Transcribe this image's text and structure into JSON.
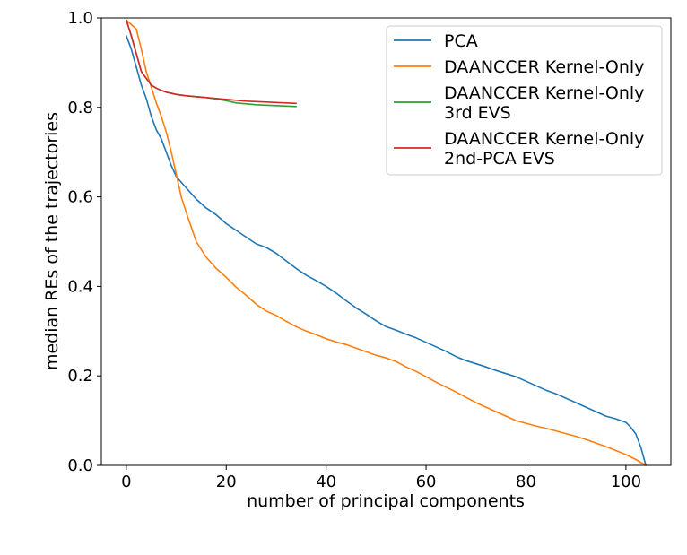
{
  "chart_data": {
    "type": "line",
    "title": "",
    "xlabel": "number of principal components",
    "ylabel": "median REs of the trajectories",
    "xlim": [
      -5,
      109
    ],
    "ylim": [
      0.0,
      1.0
    ],
    "xticks": [
      0,
      20,
      40,
      60,
      80,
      100
    ],
    "yticks": [
      0.0,
      0.2,
      0.4,
      0.6,
      0.8,
      1.0
    ],
    "xtick_labels": [
      "0",
      "20",
      "40",
      "60",
      "80",
      "100"
    ],
    "ytick_labels": [
      "0.0",
      "0.2",
      "0.4",
      "0.6",
      "0.8",
      "1.0"
    ],
    "grid": false,
    "legend_position": "top-right",
    "series": [
      {
        "name": "PCA",
        "color": "#1f77b4",
        "x": [
          0,
          1,
          2,
          3,
          4,
          5,
          6,
          7,
          8,
          9,
          10,
          12,
          14,
          16,
          18,
          20,
          22,
          24,
          26,
          28,
          30,
          32,
          34,
          36,
          38,
          40,
          42,
          44,
          46,
          48,
          50,
          52,
          54,
          56,
          58,
          60,
          62,
          64,
          66,
          68,
          70,
          72,
          74,
          76,
          78,
          80,
          82,
          84,
          86,
          88,
          90,
          92,
          94,
          96,
          98,
          100,
          101,
          102,
          103,
          104
        ],
        "y": [
          0.96,
          0.93,
          0.89,
          0.85,
          0.82,
          0.78,
          0.75,
          0.73,
          0.7,
          0.67,
          0.645,
          0.62,
          0.595,
          0.575,
          0.56,
          0.54,
          0.525,
          0.51,
          0.495,
          0.487,
          0.474,
          0.457,
          0.44,
          0.425,
          0.413,
          0.4,
          0.385,
          0.368,
          0.352,
          0.338,
          0.323,
          0.31,
          0.302,
          0.293,
          0.285,
          0.275,
          0.265,
          0.255,
          0.243,
          0.234,
          0.227,
          0.22,
          0.212,
          0.205,
          0.198,
          0.188,
          0.178,
          0.168,
          0.16,
          0.15,
          0.14,
          0.13,
          0.12,
          0.11,
          0.104,
          0.096,
          0.085,
          0.07,
          0.04,
          0.0
        ]
      },
      {
        "name": "DAANCCER Kernel-Only",
        "color": "#ff7f0e",
        "x": [
          0,
          2,
          3,
          4,
          5,
          6,
          7,
          8,
          9,
          10,
          11,
          12,
          14,
          16,
          18,
          20,
          22,
          24,
          26,
          28,
          30,
          32,
          34,
          36,
          38,
          40,
          42,
          44,
          46,
          48,
          50,
          52,
          54,
          56,
          58,
          60,
          62,
          64,
          66,
          68,
          70,
          72,
          74,
          76,
          78,
          80,
          82,
          84,
          86,
          88,
          90,
          92,
          94,
          96,
          98,
          100,
          102,
          104
        ],
        "y": [
          0.995,
          0.975,
          0.93,
          0.88,
          0.845,
          0.81,
          0.78,
          0.745,
          0.7,
          0.65,
          0.6,
          0.565,
          0.5,
          0.465,
          0.44,
          0.42,
          0.398,
          0.38,
          0.36,
          0.345,
          0.335,
          0.322,
          0.31,
          0.3,
          0.292,
          0.283,
          0.276,
          0.27,
          0.262,
          0.254,
          0.246,
          0.24,
          0.232,
          0.22,
          0.21,
          0.198,
          0.186,
          0.175,
          0.164,
          0.152,
          0.14,
          0.13,
          0.12,
          0.11,
          0.1,
          0.094,
          0.088,
          0.083,
          0.077,
          0.071,
          0.065,
          0.058,
          0.05,
          0.042,
          0.033,
          0.024,
          0.013,
          0.0
        ]
      },
      {
        "name": "DAANCCER Kernel-Only\n3rd EVS",
        "color": "#2ca02c",
        "x": [
          0,
          1,
          2,
          3,
          4,
          5,
          6,
          7,
          8,
          10,
          12,
          14,
          16,
          18,
          20,
          22,
          24,
          26,
          28,
          30,
          32,
          34
        ],
        "y": [
          0.995,
          0.96,
          0.92,
          0.88,
          0.865,
          0.85,
          0.843,
          0.838,
          0.834,
          0.829,
          0.826,
          0.824,
          0.822,
          0.819,
          0.815,
          0.81,
          0.808,
          0.806,
          0.805,
          0.804,
          0.803,
          0.802
        ]
      },
      {
        "name": "DAANCCER Kernel-Only\n2nd-PCA EVS",
        "color": "#d62728",
        "x": [
          0,
          1,
          2,
          3,
          4,
          5,
          6,
          7,
          8,
          10,
          12,
          14,
          16,
          18,
          20,
          22,
          24,
          26,
          28,
          30,
          32,
          34
        ],
        "y": [
          0.995,
          0.96,
          0.92,
          0.88,
          0.865,
          0.85,
          0.843,
          0.838,
          0.834,
          0.829,
          0.826,
          0.824,
          0.822,
          0.82,
          0.818,
          0.816,
          0.814,
          0.813,
          0.812,
          0.811,
          0.81,
          0.809
        ]
      }
    ]
  }
}
